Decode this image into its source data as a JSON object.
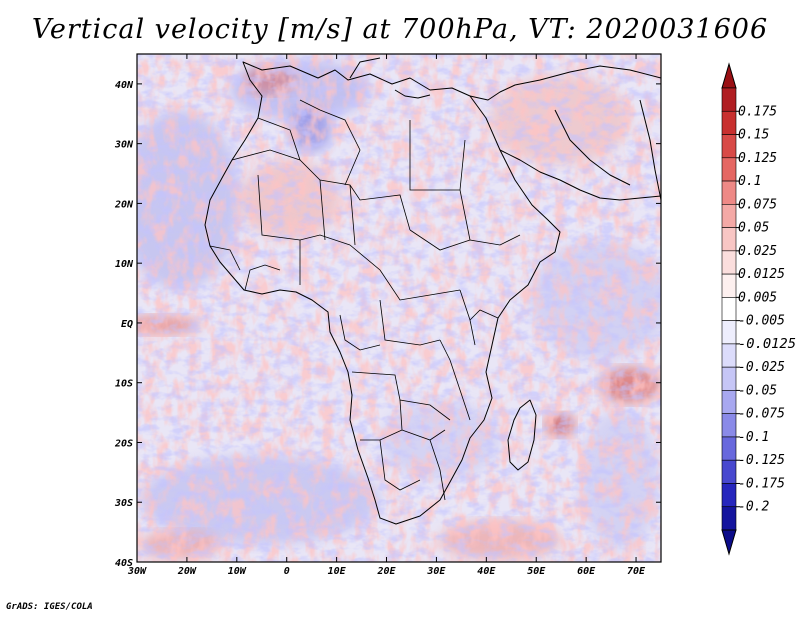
{
  "title": "Vertical velocity [m/s] at 700hPa, VT: 2020031606",
  "credit": "GrADS: IGES/COLA",
  "map": {
    "lon_range": [
      -30,
      75
    ],
    "lat_range": [
      -40,
      45
    ],
    "lon_ticks": [
      {
        "value": -30,
        "label": "30W"
      },
      {
        "value": -20,
        "label": "20W"
      },
      {
        "value": -10,
        "label": "10W"
      },
      {
        "value": 0,
        "label": "0"
      },
      {
        "value": 10,
        "label": "10E"
      },
      {
        "value": 20,
        "label": "20E"
      },
      {
        "value": 30,
        "label": "30E"
      },
      {
        "value": 40,
        "label": "40E"
      },
      {
        "value": 50,
        "label": "50E"
      },
      {
        "value": 60,
        "label": "60E"
      },
      {
        "value": 70,
        "label": "70E"
      }
    ],
    "lat_ticks": [
      {
        "value": 40,
        "label": "40N"
      },
      {
        "value": 30,
        "label": "30N"
      },
      {
        "value": 20,
        "label": "20N"
      },
      {
        "value": 10,
        "label": "10N"
      },
      {
        "value": 0,
        "label": "EQ"
      },
      {
        "value": -10,
        "label": "10S"
      },
      {
        "value": -20,
        "label": "20S"
      },
      {
        "value": -30,
        "label": "30S"
      },
      {
        "value": -40,
        "label": "40S"
      }
    ]
  },
  "colorbar": {
    "labels": [
      "0.175",
      "0.15",
      "0.125",
      "0.1",
      "0.075",
      "0.05",
      "0.025",
      "0.0125",
      "0.005",
      "-0.005",
      "-0.0125",
      "-0.025",
      "-0.05",
      "-0.075",
      "-0.1",
      "-0.125",
      "-0.175",
      "-0.2"
    ],
    "colors": [
      "#b01e22",
      "#c8302f",
      "#d84a47",
      "#e56763",
      "#ee8986",
      "#f4a9a6",
      "#f8c6c4",
      "#fbdedd",
      "#fdf0ef",
      "#ffffff",
      "#eeeefd",
      "#dcdcfb",
      "#c6c6f6",
      "#a8a8f0",
      "#8a8ae8",
      "#6868dd",
      "#4848cf",
      "#2626bd",
      "#14149e"
    ],
    "top_color": "#9a1014",
    "bottom_color": "#0c0c8a"
  }
}
